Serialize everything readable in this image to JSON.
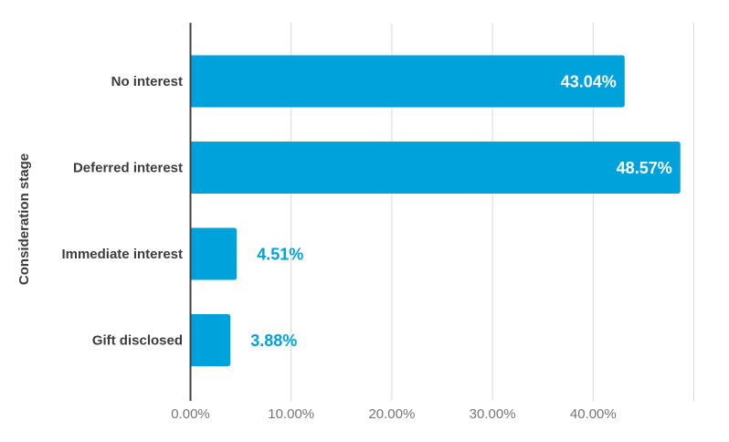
{
  "chart_data": {
    "type": "bar",
    "orientation": "horizontal",
    "title": "",
    "xlabel": "",
    "ylabel": "Consideration stage",
    "categories": [
      "No interest",
      "Deferred interest",
      "Immediate interest",
      "Gift disclosed"
    ],
    "values": [
      43.04,
      48.57,
      4.51,
      3.88
    ],
    "value_labels": [
      "43.04%",
      "48.57%",
      "4.51%",
      "3.88%"
    ],
    "x_axis": {
      "max_pct": 50,
      "ticks": [
        {
          "pct": 0,
          "label": "0.00%"
        },
        {
          "pct": 10,
          "label": "10.00%"
        },
        {
          "pct": 20,
          "label": "20.00%"
        },
        {
          "pct": 30,
          "label": "30.00%"
        },
        {
          "pct": 40,
          "label": "40.00%"
        },
        {
          "pct": 50,
          "label": ""
        }
      ]
    },
    "grid": "vertical-gridlines-on",
    "legend": "none",
    "colors": {
      "bar": "#00A2DC",
      "value_label_inside": "#FFFFFF",
      "value_label_outside": "#00A2DC",
      "category_label": "#3C3C3C",
      "tick_label": "#757575",
      "gridline": "#D9D9D9",
      "axis_line": "#3F3F3F",
      "background": "#FFFFFF"
    }
  }
}
